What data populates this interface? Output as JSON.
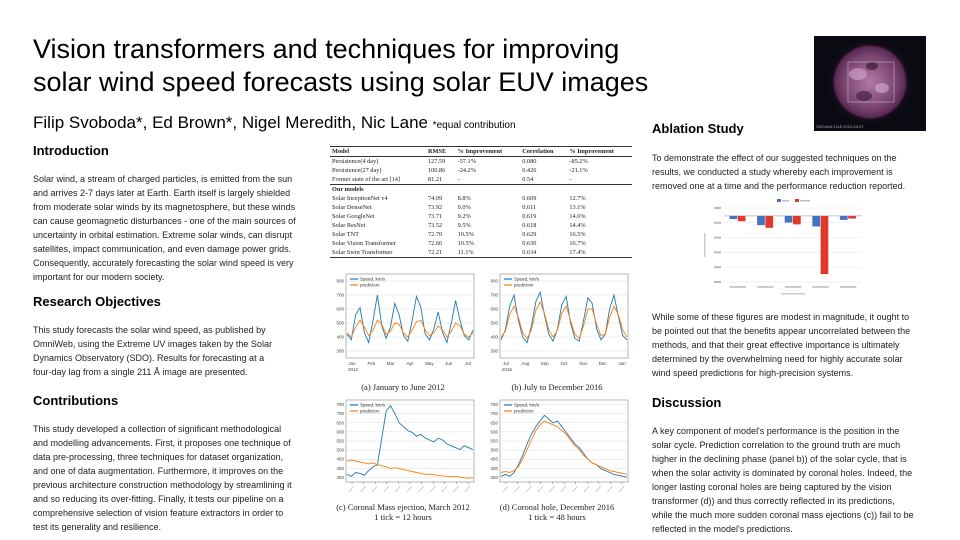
{
  "title": {
    "line1": "Vision transformers and techniques for improving",
    "line2": "solar wind speed forecasts using solar EUV images"
  },
  "authors": {
    "names": "Filip Svoboda*, Ed Brown*, Nigel Meredith, Nic Lane ",
    "note": "*equal contribution"
  },
  "thumbnail": {
    "caption": "SDO/AIA  211Å  2012-03-07"
  },
  "introduction": {
    "heading": "Introduction",
    "lines": [
      "Solar wind, a stream of charged particles, is emitted from the sun",
      "and arrives 2-7 days later at Earth. Earth itself is largely shielded",
      "from moderate solar winds by its magnetosphere, but these winds",
      "can cause geomagnetic disturbances - one of the main sources of",
      "uncertainty in orbital estimation. Extreme solar winds, can disrupt",
      "satellites, impact communication, and even damage power grids.",
      "Consequently, accurately forecasting the solar wind speed is very",
      "important for our modern society."
    ]
  },
  "objectives": {
    "heading": "Research Objectives",
    "lines": [
      "This study forecasts the solar wind speed, as published by",
      "OmniWeb, using the Extreme UV images taken by the Solar",
      "Dynamics Observatory (SDO). Results for forecasting at a",
      "four-day lag from a single 211 Å image are presented."
    ]
  },
  "contributions": {
    "heading": "Contributions",
    "lines": [
      "This study developed a collection of significant methodological",
      "and modelling advancements. First, it proposes one technique of",
      "data pre-processing, three techniques for dataset organization,",
      "and one of data augmentation. Furthermore, it improves on the",
      "previous architecture construction methodology by streamlining it",
      "and so reducing its over-fitting. Finally, it tests our pipeline on a",
      "comprehensive selection of vision feature extractors in order to",
      "test its generality and resilience."
    ]
  },
  "results_table": {
    "headers": [
      "Model",
      "RMSE",
      "% Improvement",
      "Correlation",
      "% Improvement"
    ],
    "baselines": [
      [
        "Persistence(4 day)",
        "127.59",
        "-57.1%",
        "0.080",
        "-85.2%"
      ],
      [
        "Persistence(27 day)",
        "100.86",
        "-24.2%",
        "0.426",
        "-21.1%"
      ],
      [
        "Former state of the art [14]",
        "81.21",
        "-",
        "0.54",
        "-"
      ]
    ],
    "group_label": "Our models",
    "models": [
      [
        "Solar InceptionNet v4",
        "74.09",
        "8.8%",
        "0.609",
        "12.7%"
      ],
      [
        "Solar DenseNet",
        "73.92",
        "9.0%",
        "0.611",
        "13.1%"
      ],
      [
        "Solar GoogleNet",
        "73.71",
        "9.2%",
        "0.619",
        "14.6%"
      ],
      [
        "Solar ResNet",
        "73.52",
        "9.5%",
        "0.618",
        "14.4%"
      ],
      [
        "Solar TNT",
        "72.70",
        "10.5%",
        "0.629",
        "16.5%"
      ],
      [
        "Solar Vision Transformer",
        "72.66",
        "10.5%",
        "0.630",
        "16.7%"
      ],
      [
        "Solar Swin Transformer",
        "72.21",
        "11.1%",
        "0.634",
        "17.4%"
      ]
    ]
  },
  "figures": {
    "a": {
      "legend": [
        "Speed, km/s",
        "prediction"
      ],
      "y_ticks": [
        "800",
        "700",
        "600",
        "500",
        "400",
        "300"
      ],
      "x_ticks": [
        "Jan",
        "Feb",
        "Mar",
        "Apr",
        "May",
        "Jun",
        "Jul"
      ],
      "year": "2012",
      "caption": "(a) January to June 2012"
    },
    "b": {
      "legend": [
        "Speed, km/s",
        "prediction"
      ],
      "y_ticks": [
        "800",
        "700",
        "600",
        "500",
        "400",
        "300"
      ],
      "x_ticks": [
        "Jul",
        "Aug",
        "Sep",
        "Oct",
        "Nov",
        "Dec",
        "Jan"
      ],
      "year": "2016",
      "caption": "(b) July to December 2016"
    },
    "c": {
      "legend": [
        "Speed, km/s",
        "prediction"
      ],
      "y_ticks": [
        "750",
        "700",
        "650",
        "600",
        "550",
        "500",
        "450",
        "400",
        "350"
      ],
      "caption": "(c) Coronal Mass ejection, March 2012",
      "caption2": "1 tick = 12 hours"
    },
    "d": {
      "legend": [
        "Speed, km/s",
        "prediction"
      ],
      "y_ticks": [
        "750",
        "700",
        "650",
        "600",
        "550",
        "500",
        "450",
        "400",
        "350"
      ],
      "caption": "(d) Coronal hole, December 2016",
      "caption2": "1 tick = 48 hours"
    }
  },
  "ablation": {
    "heading": "Ablation Study",
    "lines": [
      "To demonstrate the effect of our suggested techniques on the",
      "results, we conducted a study whereby each improvement is",
      "removed one at a time and the performance reduction reported."
    ],
    "after_lines": [
      "While some of these figures are modest in magnitude, it ought to",
      "be pointed out that the benefits appear uncorrelated between the",
      "methods, and that their great effective importance is ultimately",
      "determined by the overwhelming need for highly accurate solar",
      "wind speed predictions for high-precision systems."
    ]
  },
  "discussion": {
    "heading": "Discussion",
    "lines": [
      "A key component of model's performance is the position in the",
      "solar cycle. Prediction correlation to the ground truth are much",
      "higher in the declining phase (panel b)) of the solar cycle, that is",
      "when the solar activity is dominated by coronal holes. Indeed, the",
      "longer lasting coronal holes are being captured by the vision",
      "transformer (d)) and thus correctly reflected in its predictions,",
      "while the much more sudden coronal mass ejections (c)) fail to be",
      "reflected in the model's predictions."
    ]
  },
  "colors": {
    "observed": "#1f77b4",
    "prediction": "#ff7f0e",
    "rmse_bar": "#4472c4",
    "corr_bar": "#e0392b"
  },
  "chart_data": [
    {
      "type": "line",
      "panel": "a",
      "ylim": [
        250,
        850
      ],
      "series": [
        {
          "name": "Speed, km/s",
          "values": [
            420,
            380,
            560,
            610,
            430,
            360,
            520,
            700,
            480,
            390,
            470,
            640,
            560,
            410,
            370,
            520,
            690,
            610,
            420,
            380,
            460,
            580,
            430,
            360,
            500,
            660,
            520,
            410,
            380,
            450
          ]
        },
        {
          "name": "prediction",
          "values": [
            430,
            400,
            470,
            520,
            470,
            410,
            450,
            520,
            490,
            420,
            440,
            500,
            490,
            430,
            400,
            450,
            510,
            520,
            450,
            410,
            430,
            480,
            450,
            400,
            440,
            500,
            480,
            420,
            400,
            430
          ]
        }
      ]
    },
    {
      "type": "line",
      "panel": "b",
      "ylim": [
        250,
        850
      ],
      "series": [
        {
          "name": "Speed, km/s",
          "values": [
            380,
            450,
            620,
            700,
            520,
            400,
            360,
            480,
            650,
            720,
            560,
            420,
            370,
            460,
            630,
            690,
            500,
            390,
            370,
            520,
            680,
            640,
            460,
            380,
            420,
            600,
            700,
            550,
            410,
            380
          ]
        },
        {
          "name": "prediction",
          "values": [
            400,
            440,
            560,
            620,
            540,
            430,
            390,
            450,
            590,
            650,
            570,
            450,
            400,
            450,
            570,
            620,
            520,
            420,
            390,
            480,
            600,
            600,
            490,
            410,
            420,
            540,
            620,
            560,
            450,
            400
          ]
        }
      ]
    },
    {
      "type": "line",
      "panel": "c",
      "ylim": [
        330,
        760
      ],
      "series": [
        {
          "name": "Speed, km/s",
          "values": [
            370,
            360,
            380,
            375,
            365,
            390,
            410,
            420,
            560,
            700,
            730,
            690,
            640,
            620,
            600,
            590,
            570,
            580,
            560,
            550,
            540,
            560,
            550,
            530,
            520,
            510,
            500,
            520,
            510,
            500
          ]
        },
        {
          "name": "prediction",
          "values": [
            440,
            445,
            440,
            435,
            430,
            425,
            430,
            420,
            415,
            410,
            400,
            405,
            400,
            395,
            390,
            385,
            380,
            375,
            370,
            372,
            368,
            365,
            362,
            360,
            358,
            360,
            355,
            352,
            350,
            352
          ]
        }
      ]
    },
    {
      "type": "line",
      "panel": "d",
      "ylim": [
        330,
        760
      ],
      "series": [
        {
          "name": "Speed, km/s",
          "values": [
            360,
            370,
            360,
            380,
            420,
            470,
            530,
            580,
            620,
            650,
            680,
            660,
            640,
            650,
            620,
            590,
            560,
            530,
            510,
            480,
            450,
            430,
            420,
            400,
            390,
            380,
            370,
            365,
            360,
            355
          ]
        },
        {
          "name": "prediction",
          "values": [
            380,
            385,
            380,
            390,
            410,
            450,
            500,
            550,
            600,
            630,
            650,
            640,
            630,
            620,
            600,
            580,
            550,
            520,
            500,
            470,
            450,
            430,
            420,
            410,
            400,
            390,
            385,
            380,
            375,
            370
          ]
        }
      ]
    },
    {
      "type": "bar",
      "panel": "ablation",
      "categories": [
        "c1",
        "c2",
        "c3",
        "c4",
        "c5"
      ],
      "ylim": [
        -25,
        3
      ],
      "series": [
        {
          "name": "rmse",
          "values": [
            -1.2,
            -3.5,
            -2.5,
            -4.0,
            -1.5
          ]
        },
        {
          "name": "correlation",
          "values": [
            -2.0,
            -4.5,
            -3.2,
            -22.0,
            -1.0
          ]
        }
      ]
    }
  ]
}
